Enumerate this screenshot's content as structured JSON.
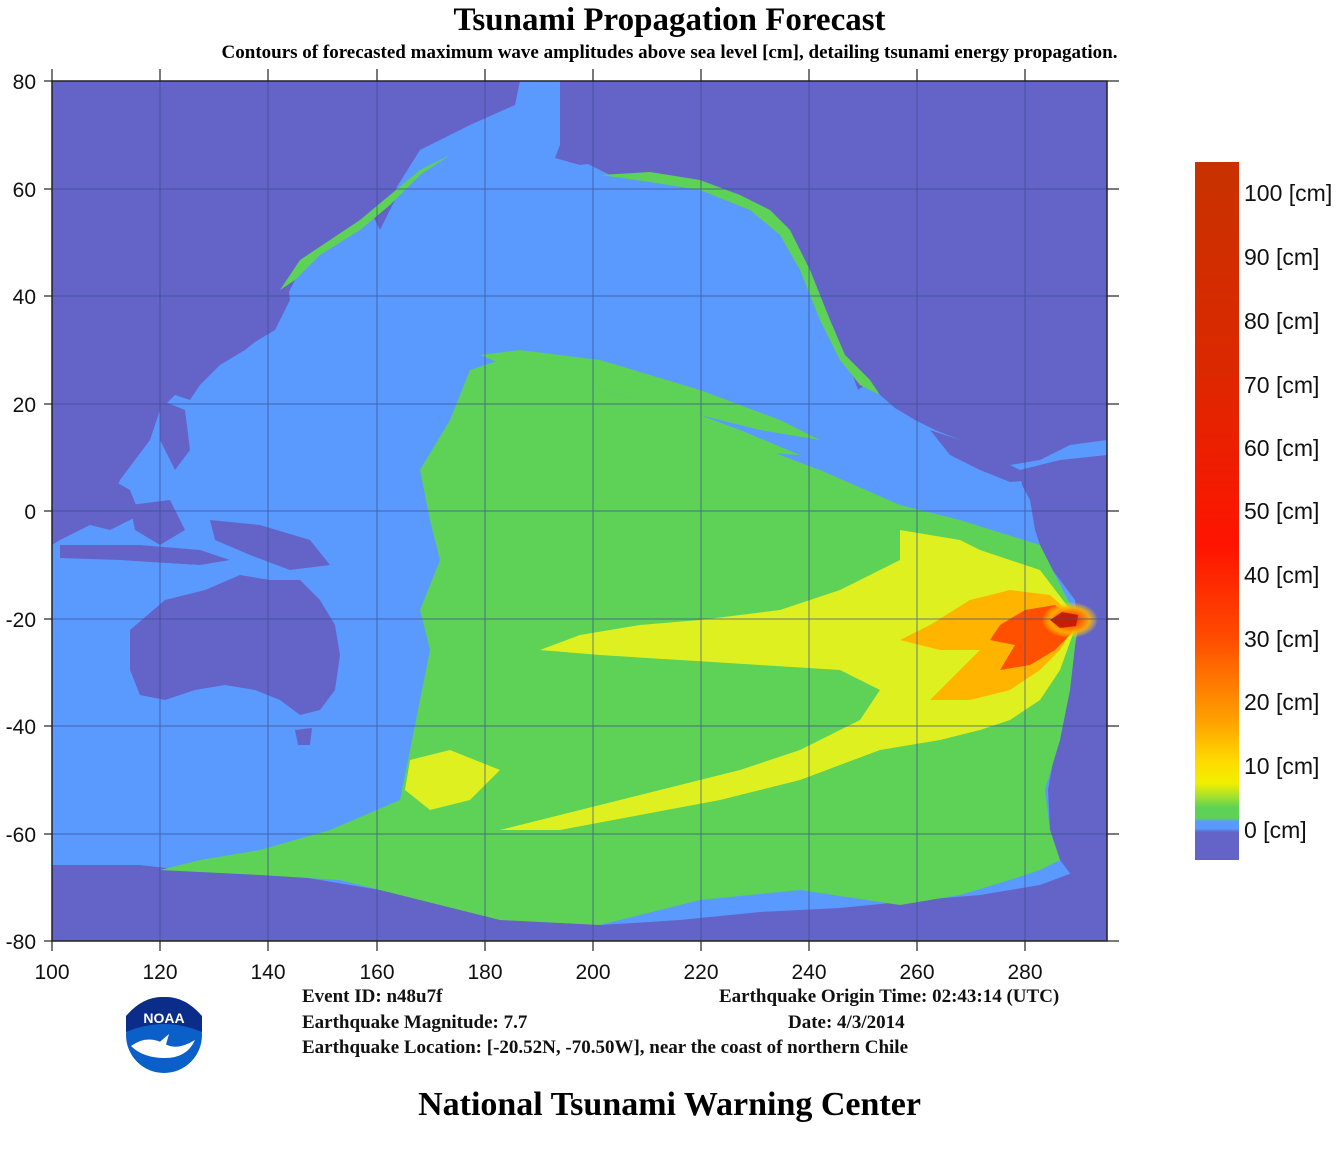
{
  "title": "Tsunami Propagation Forecast",
  "subtitle": "Contours of forecasted maximum wave amplitudes above sea level [cm], detailing tsunami energy propagation.",
  "map": {
    "x_ticks": [
      "100",
      "120",
      "140",
      "160",
      "180",
      "200",
      "220",
      "240",
      "260",
      "280"
    ],
    "y_ticks": [
      "80",
      "60",
      "40",
      "20",
      "0",
      "-20",
      "-40",
      "-60",
      "-80"
    ],
    "epicenter": "[-20.52N, -70.50W]",
    "colors": {
      "land": "#6464c8",
      "ocean": "#5a9aff",
      "low_wave": "#5ed157",
      "mid_wave": "#e0f020",
      "high_wave": "#ff9a00",
      "peak_wave": "#dd1800"
    }
  },
  "colorbar": {
    "labels": [
      "100 [cm]",
      "90 [cm]",
      "80 [cm]",
      "70 [cm]",
      "60 [cm]",
      "50 [cm]",
      "40 [cm]",
      "30 [cm]",
      "20 [cm]",
      "10 [cm]",
      "0 [cm]"
    ]
  },
  "event": {
    "id_text": "Event ID: n48u7f",
    "magnitude_text": "Earthquake Magnitude: 7.7",
    "location_text": "Earthquake Location: [-20.52N, -70.50W], near the coast of northern Chile",
    "origin_time_text": "Earthquake Origin Time: 02:43:14 (UTC)",
    "date_text": "Date: 4/3/2014"
  },
  "logo": {
    "text": "NOAA"
  },
  "footer": "National Tsunami Warning Center"
}
